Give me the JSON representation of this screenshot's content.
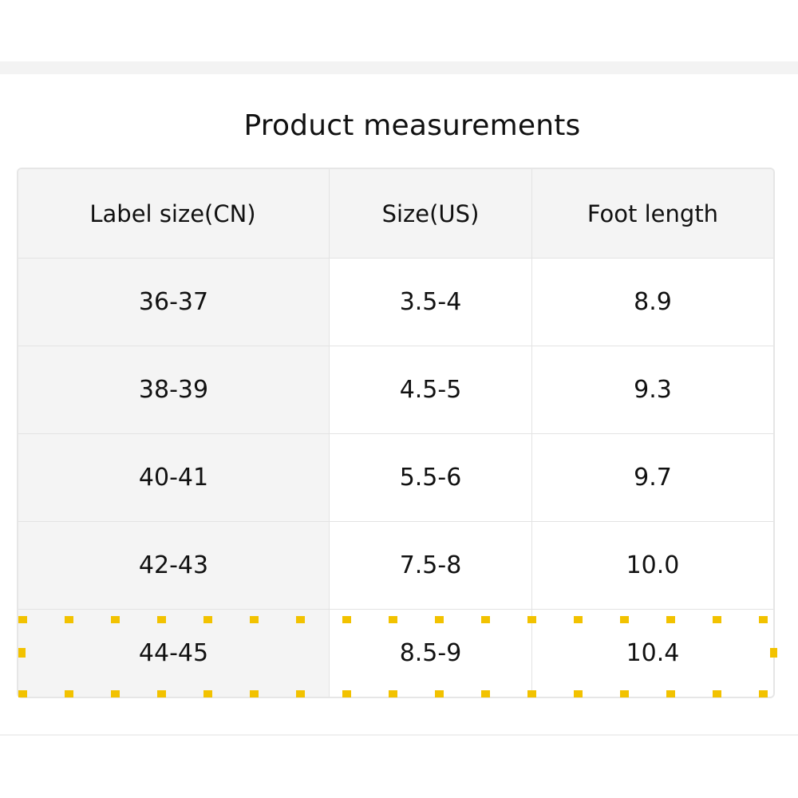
{
  "title": "Product measurements",
  "table": {
    "headers": [
      "Label size(CN)",
      "Size(US)",
      "Foot length"
    ],
    "rows": [
      [
        "36-37",
        "3.5-4",
        "8.9"
      ],
      [
        "38-39",
        "4.5-5",
        "9.3"
      ],
      [
        "40-41",
        "5.5-6",
        "9.7"
      ],
      [
        "42-43",
        "7.5-8",
        "10.0"
      ],
      [
        "44-45",
        "8.5-9",
        "10.4"
      ]
    ]
  },
  "highlight": {
    "row_index": 4,
    "color": "#f2c200"
  }
}
